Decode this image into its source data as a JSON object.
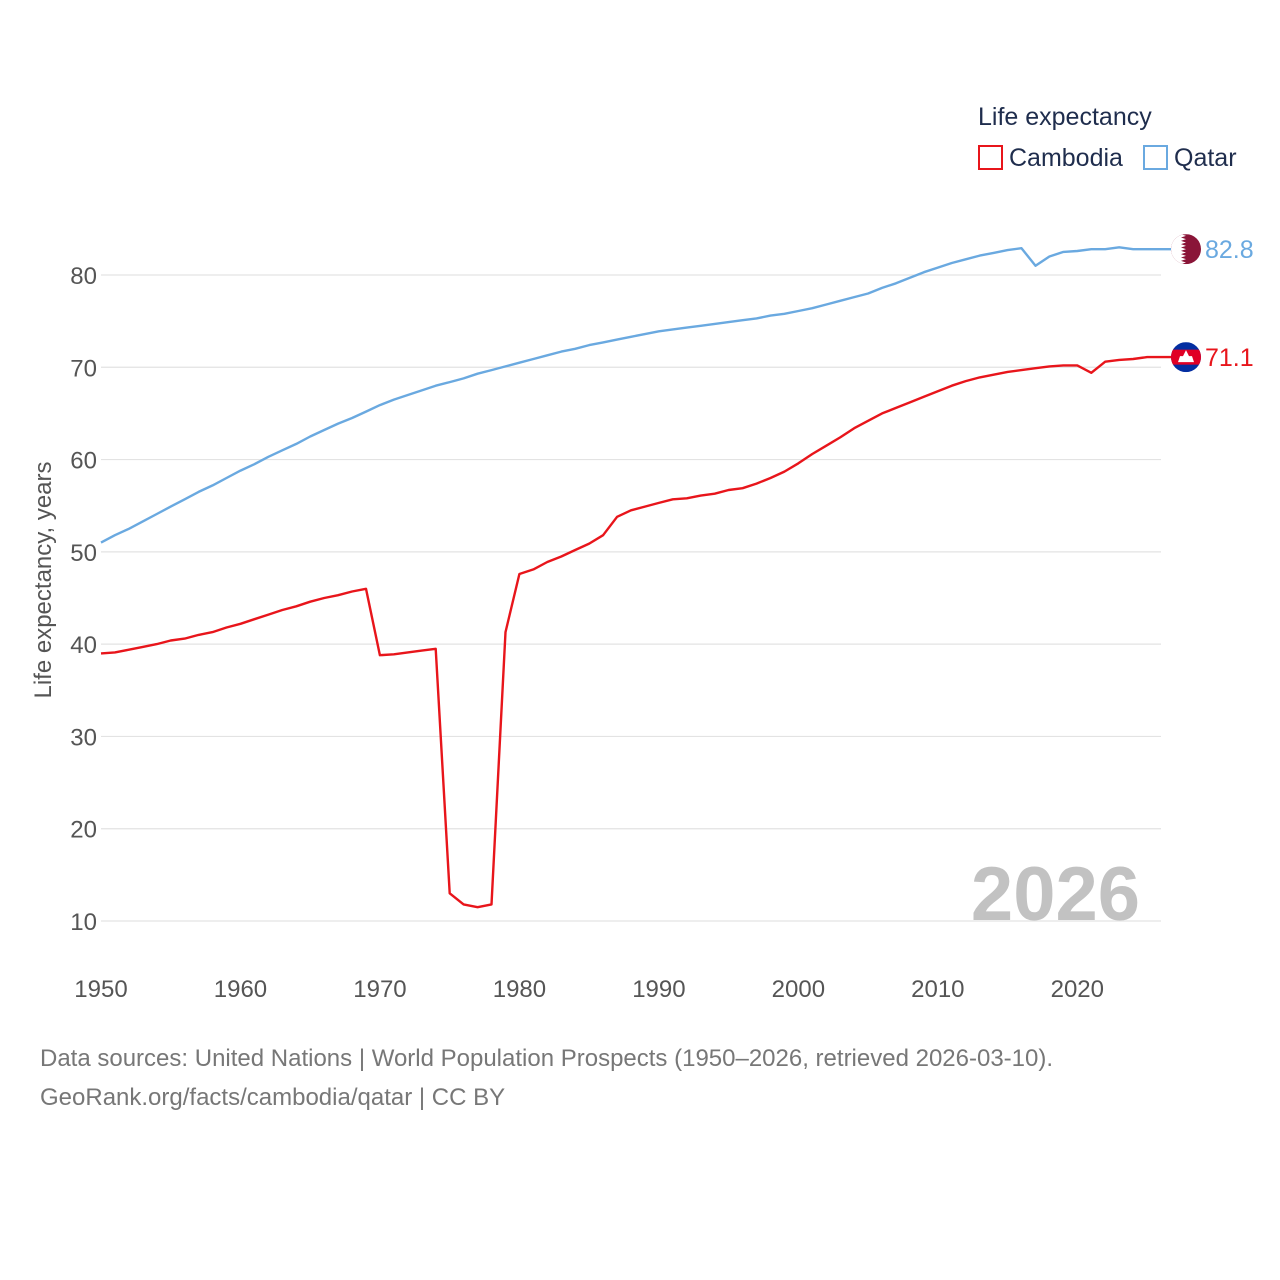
{
  "chart_data": {
    "type": "line",
    "title": "",
    "legend_title": "Life expectancy",
    "legend_position": "top-right",
    "xlabel": "",
    "ylabel": "Life expectancy, years",
    "xlim": [
      1950,
      2026
    ],
    "ylim": [
      5,
      88
    ],
    "x_ticks": [
      1950,
      1960,
      1970,
      1980,
      1990,
      2000,
      2010,
      2020
    ],
    "y_ticks": [
      10,
      20,
      30,
      40,
      50,
      60,
      70,
      80
    ],
    "grid": "horizontal",
    "year_watermark": "2026",
    "x": [
      1950,
      1951,
      1952,
      1953,
      1954,
      1955,
      1956,
      1957,
      1958,
      1959,
      1960,
      1961,
      1962,
      1963,
      1964,
      1965,
      1966,
      1967,
      1968,
      1969,
      1970,
      1971,
      1972,
      1973,
      1974,
      1975,
      1976,
      1977,
      1978,
      1979,
      1980,
      1981,
      1982,
      1983,
      1984,
      1985,
      1986,
      1987,
      1988,
      1989,
      1990,
      1991,
      1992,
      1993,
      1994,
      1995,
      1996,
      1997,
      1998,
      1999,
      2000,
      2001,
      2002,
      2003,
      2004,
      2005,
      2006,
      2007,
      2008,
      2009,
      2010,
      2011,
      2012,
      2013,
      2014,
      2015,
      2016,
      2017,
      2018,
      2019,
      2020,
      2021,
      2022,
      2023,
      2024,
      2025,
      2026
    ],
    "series": [
      {
        "name": "Cambodia",
        "color": "#e8151b",
        "end_label": "71.1",
        "flag_icon": "cambodia-flag-icon",
        "values": [
          39.0,
          39.1,
          39.4,
          39.7,
          40.0,
          40.4,
          40.6,
          41.0,
          41.3,
          41.8,
          42.2,
          42.7,
          43.2,
          43.7,
          44.1,
          44.6,
          45.0,
          45.3,
          45.7,
          46.0,
          38.8,
          38.9,
          39.1,
          39.3,
          39.5,
          13.0,
          11.8,
          11.5,
          11.8,
          41.3,
          47.6,
          48.1,
          48.9,
          49.5,
          50.2,
          50.9,
          51.8,
          53.8,
          54.5,
          54.9,
          55.3,
          55.7,
          55.8,
          56.1,
          56.3,
          56.7,
          56.9,
          57.4,
          58.0,
          58.7,
          59.6,
          60.6,
          61.5,
          62.4,
          63.4,
          64.2,
          65.0,
          65.6,
          66.2,
          66.8,
          67.4,
          68.0,
          68.5,
          68.9,
          69.2,
          69.5,
          69.7,
          69.9,
          70.1,
          70.2,
          70.2,
          69.4,
          70.6,
          70.8,
          70.9,
          71.1,
          71.1
        ]
      },
      {
        "name": "Qatar",
        "color": "#6aa9e0",
        "end_label": "82.8",
        "flag_icon": "qatar-flag-icon",
        "values": [
          51.0,
          51.8,
          52.5,
          53.3,
          54.1,
          54.9,
          55.7,
          56.5,
          57.2,
          58.0,
          58.8,
          59.5,
          60.3,
          61.0,
          61.7,
          62.5,
          63.2,
          63.9,
          64.5,
          65.2,
          65.9,
          66.5,
          67.0,
          67.5,
          68.0,
          68.4,
          68.8,
          69.3,
          69.7,
          70.1,
          70.5,
          70.9,
          71.3,
          71.7,
          72.0,
          72.4,
          72.7,
          73.0,
          73.3,
          73.6,
          73.9,
          74.1,
          74.3,
          74.5,
          74.7,
          74.9,
          75.1,
          75.3,
          75.6,
          75.8,
          76.1,
          76.4,
          76.8,
          77.2,
          77.6,
          78.0,
          78.6,
          79.1,
          79.7,
          80.3,
          80.8,
          81.3,
          81.7,
          82.1,
          82.4,
          82.7,
          82.9,
          81.0,
          82.0,
          82.5,
          82.6,
          82.8,
          82.8,
          83.0,
          82.8,
          82.8,
          82.8
        ]
      }
    ]
  },
  "footer": {
    "line1": "Data sources: United Nations | World Population Prospects (1950–2026, retrieved 2026-03-10).",
    "line2": "GeoRank.org/facts/cambodia/qatar | CC BY"
  }
}
